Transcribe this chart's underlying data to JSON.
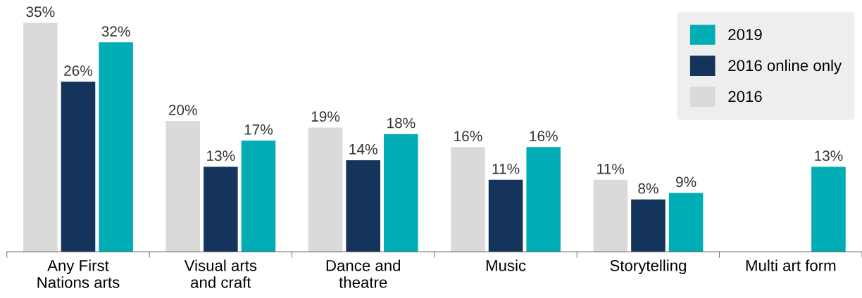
{
  "chart_data": {
    "type": "bar",
    "categories": [
      "Any First\nNations arts",
      "Visual arts\nand craft",
      "Dance and\ntheatre",
      "Music",
      "Storytelling",
      "Multi art form"
    ],
    "series": [
      {
        "name": "2016",
        "color": "#dadada",
        "values": [
          35,
          20,
          19,
          16,
          11,
          null
        ],
        "value_labels": [
          "35%",
          "20%",
          "19%",
          "16%",
          "11%",
          null
        ]
      },
      {
        "name": "2016 online only",
        "color": "#15345c",
        "values": [
          26,
          13,
          14,
          11,
          8,
          null
        ],
        "value_labels": [
          "26%",
          "13%",
          "14%",
          "11%",
          "8%",
          null
        ]
      },
      {
        "name": "2019",
        "color": "#00adb4",
        "values": [
          32,
          17,
          18,
          16,
          9,
          13
        ],
        "value_labels": [
          "32%",
          "17%",
          "18%",
          "16%",
          "9%",
          "13%"
        ]
      }
    ],
    "legend": "top right"
  }
}
